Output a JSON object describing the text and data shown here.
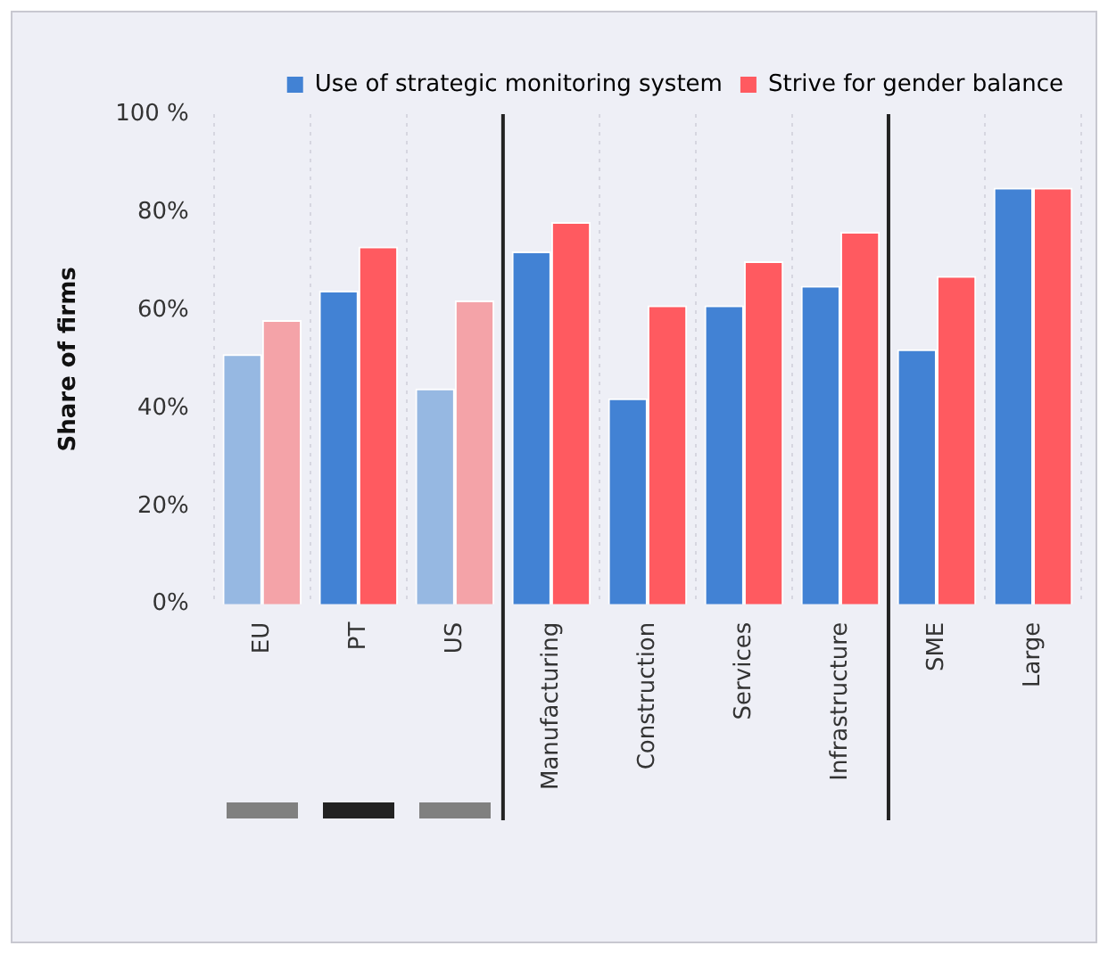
{
  "chart_data": {
    "type": "bar",
    "ylabel": "Share of firms",
    "categories": [
      "EU",
      "PT",
      "US",
      "Manufacturing",
      "Construction",
      "Services",
      "Infrastructure",
      "SME",
      "Large"
    ],
    "series": [
      {
        "name": "Use of strategic monitoring system",
        "color": "#4282d4",
        "colors": [
          "#96b8e2",
          "#4282d4",
          "#96b8e2",
          "#4282d4",
          "#4282d4",
          "#4282d4",
          "#4282d4",
          "#4282d4",
          "#4282d4"
        ],
        "values": [
          51,
          64,
          44,
          72,
          42,
          61,
          65,
          52,
          85
        ]
      },
      {
        "name": "Strive for gender balance",
        "color": "#ff5a60",
        "colors": [
          "#f4a3a8",
          "#ff5a60",
          "#f4a3a8",
          "#ff5a60",
          "#ff5a60",
          "#ff5a60",
          "#ff5a60",
          "#ff5a60",
          "#ff5a60"
        ],
        "values": [
          58,
          73,
          62,
          78,
          61,
          70,
          76,
          67,
          85
        ]
      }
    ],
    "ylim": [
      0,
      100
    ],
    "yticks": [
      {
        "value": 0,
        "label": "0%"
      },
      {
        "value": 20,
        "label": "20%"
      },
      {
        "value": 40,
        "label": "40%"
      },
      {
        "value": 60,
        "label": "60%"
      },
      {
        "value": 80,
        "label": "80%"
      },
      {
        "value": 100,
        "label": "100 %"
      }
    ],
    "grid": "x",
    "legend": "top right"
  }
}
